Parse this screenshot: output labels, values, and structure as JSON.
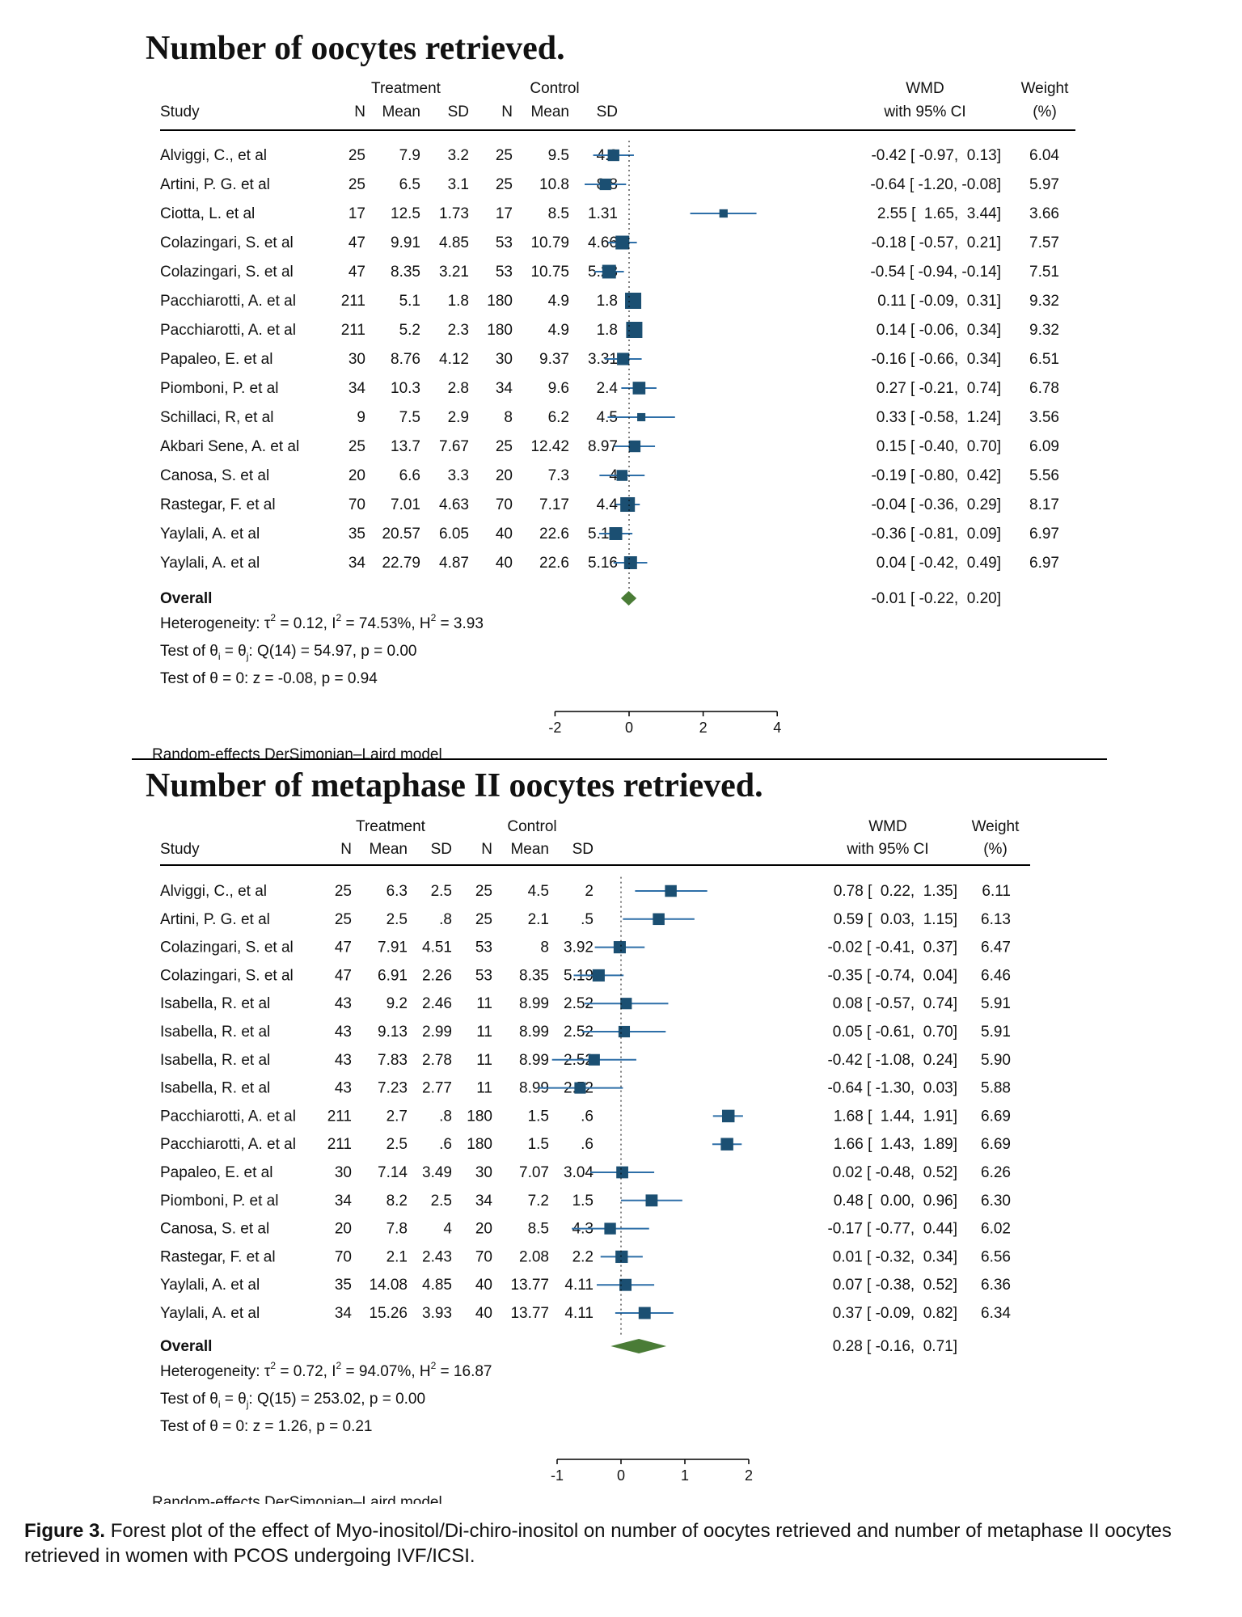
{
  "colors": {
    "marker": "#1b4f72",
    "ci_line": "#2e6fa8",
    "diamond": "#4a7c36",
    "text": "#111111",
    "rule": "#000000"
  },
  "headers": {
    "study": "Study",
    "treatment": "Treatment",
    "control": "Control",
    "n": "N",
    "mean": "Mean",
    "sd": "SD",
    "wmd": "WMD",
    "ci": "with 95% CI",
    "weight": "Weight",
    "weight_unit": "(%)"
  },
  "figure_caption": {
    "label": "Figure 3.",
    "text": " Forest plot of the effect of Myo-inositol/Di-chiro-inositol on number of oocytes retrieved and number of metaphase II oocytes retrieved in women with PCOS undergoing IVF/ICSI."
  },
  "chart_data": [
    {
      "type": "forest",
      "title": "Number of oocytes retrieved.",
      "xlim": [
        -2,
        4
      ],
      "ticks": [
        "-2",
        "0",
        "2",
        "4"
      ],
      "reference_line": 0,
      "model_note": "Random-effects DerSimonian–Laird model",
      "studies": [
        {
          "study": "Alviggi, C., et al",
          "tn": "25",
          "tmean": "7.9",
          "tsd": "3.2",
          "cn": "25",
          "cmean": "9.5",
          "csd": "4.2",
          "wmd": -0.42,
          "lo": -0.97,
          "hi": 0.13,
          "ci_text": "-0.42 [ -0.97,  0.13]",
          "weight": "6.04"
        },
        {
          "study": "Artini, P. G. et al",
          "tn": "25",
          "tmean": "6.5",
          "tsd": "3.1",
          "cn": "25",
          "cmean": "10.8",
          "csd": "8.8",
          "wmd": -0.64,
          "lo": -1.2,
          "hi": -0.08,
          "ci_text": "-0.64 [ -1.20, -0.08]",
          "weight": "5.97"
        },
        {
          "study": "Ciotta, L. et al",
          "tn": "17",
          "tmean": "12.5",
          "tsd": "1.73",
          "cn": "17",
          "cmean": "8.5",
          "csd": "1.31",
          "wmd": 2.55,
          "lo": 1.65,
          "hi": 3.44,
          "ci_text": "2.55 [  1.65,  3.44]",
          "weight": "3.66"
        },
        {
          "study": "Colazingari, S. et al",
          "tn": "47",
          "tmean": "9.91",
          "tsd": "4.85",
          "cn": "53",
          "cmean": "10.79",
          "csd": "4.66",
          "wmd": -0.18,
          "lo": -0.57,
          "hi": 0.21,
          "ci_text": "-0.18 [ -0.57,  0.21]",
          "weight": "7.57"
        },
        {
          "study": "Colazingari, S. et al",
          "tn": "47",
          "tmean": "8.35",
          "tsd": "3.21",
          "cn": "53",
          "cmean": "10.75",
          "csd": "5.23",
          "wmd": -0.54,
          "lo": -0.94,
          "hi": -0.14,
          "ci_text": "-0.54 [ -0.94, -0.14]",
          "weight": "7.51"
        },
        {
          "study": "Pacchiarotti, A. et al",
          "tn": "211",
          "tmean": "5.1",
          "tsd": "1.8",
          "cn": "180",
          "cmean": "4.9",
          "csd": "1.8",
          "wmd": 0.11,
          "lo": -0.09,
          "hi": 0.31,
          "ci_text": "0.11 [ -0.09,  0.31]",
          "weight": "9.32"
        },
        {
          "study": "Pacchiarotti, A. et al",
          "tn": "211",
          "tmean": "5.2",
          "tsd": "2.3",
          "cn": "180",
          "cmean": "4.9",
          "csd": "1.8",
          "wmd": 0.14,
          "lo": -0.06,
          "hi": 0.34,
          "ci_text": "0.14 [ -0.06,  0.34]",
          "weight": "9.32"
        },
        {
          "study": "Papaleo, E. et al",
          "tn": "30",
          "tmean": "8.76",
          "tsd": "4.12",
          "cn": "30",
          "cmean": "9.37",
          "csd": "3.31",
          "wmd": -0.16,
          "lo": -0.66,
          "hi": 0.34,
          "ci_text": "-0.16 [ -0.66,  0.34]",
          "weight": "6.51"
        },
        {
          "study": "Piomboni, P. et al",
          "tn": "34",
          "tmean": "10.3",
          "tsd": "2.8",
          "cn": "34",
          "cmean": "9.6",
          "csd": "2.4",
          "wmd": 0.27,
          "lo": -0.21,
          "hi": 0.74,
          "ci_text": "0.27 [ -0.21,  0.74]",
          "weight": "6.78"
        },
        {
          "study": "Schillaci, R, et al",
          "tn": "9",
          "tmean": "7.5",
          "tsd": "2.9",
          "cn": "8",
          "cmean": "6.2",
          "csd": "4.5",
          "wmd": 0.33,
          "lo": -0.58,
          "hi": 1.24,
          "ci_text": "0.33 [ -0.58,  1.24]",
          "weight": "3.56"
        },
        {
          "study": "Akbari Sene, A. et al",
          "tn": "25",
          "tmean": "13.7",
          "tsd": "7.67",
          "cn": "25",
          "cmean": "12.42",
          "csd": "8.97",
          "wmd": 0.15,
          "lo": -0.4,
          "hi": 0.7,
          "ci_text": "0.15 [ -0.40,  0.70]",
          "weight": "6.09"
        },
        {
          "study": "Canosa, S. et al",
          "tn": "20",
          "tmean": "6.6",
          "tsd": "3.3",
          "cn": "20",
          "cmean": "7.3",
          "csd": "4",
          "wmd": -0.19,
          "lo": -0.8,
          "hi": 0.42,
          "ci_text": "-0.19 [ -0.80,  0.42]",
          "weight": "5.56"
        },
        {
          "study": "Rastegar, F. et al",
          "tn": "70",
          "tmean": "7.01",
          "tsd": "4.63",
          "cn": "70",
          "cmean": "7.17",
          "csd": "4.4",
          "wmd": -0.04,
          "lo": -0.36,
          "hi": 0.29,
          "ci_text": "-0.04 [ -0.36,  0.29]",
          "weight": "8.17"
        },
        {
          "study": "Yaylali, A. et al",
          "tn": "35",
          "tmean": "20.57",
          "tsd": "6.05",
          "cn": "40",
          "cmean": "22.6",
          "csd": "5.16",
          "wmd": -0.36,
          "lo": -0.81,
          "hi": 0.09,
          "ci_text": "-0.36 [ -0.81,  0.09]",
          "weight": "6.97"
        },
        {
          "study": "Yaylali, A. et al",
          "tn": "34",
          "tmean": "22.79",
          "tsd": "4.87",
          "cn": "40",
          "cmean": "22.6",
          "csd": "5.16",
          "wmd": 0.04,
          "lo": -0.42,
          "hi": 0.49,
          "ci_text": "0.04 [ -0.42,  0.49]",
          "weight": "6.97"
        }
      ],
      "overall": {
        "label": "Overall",
        "wmd": -0.01,
        "lo": -0.22,
        "hi": 0.2,
        "ci_text": "-0.01 [ -0.22,  0.20]"
      },
      "stats": {
        "het_a": "Heterogeneity: τ",
        "het_b": " = 0.12, I",
        "het_c": " = 74.53%, H",
        "het_d": " = 3.93",
        "q_a": "Test of θ",
        "q_b": " = θ",
        "q_c": ": Q(14) = 54.97, p = 0.00",
        "z": "Test of θ = 0: z = -0.08, p = 0.94"
      }
    },
    {
      "type": "forest",
      "title": "Number of metaphase II oocytes retrieved.",
      "xlim": [
        -1,
        2
      ],
      "ticks": [
        "-1",
        "0",
        "1",
        "2"
      ],
      "reference_line": 0,
      "model_note": "Random-effects DerSimonian–Laird model",
      "studies": [
        {
          "study": "Alviggi, C., et al",
          "tn": "25",
          "tmean": "6.3",
          "tsd": "2.5",
          "cn": "25",
          "cmean": "4.5",
          "csd": "2",
          "wmd": 0.78,
          "lo": 0.22,
          "hi": 1.35,
          "ci_text": "0.78 [  0.22,  1.35]",
          "weight": "6.11"
        },
        {
          "study": "Artini, P. G. et al",
          "tn": "25",
          "tmean": "2.5",
          "tsd": ".8",
          "cn": "25",
          "cmean": "2.1",
          "csd": ".5",
          "wmd": 0.59,
          "lo": 0.03,
          "hi": 1.15,
          "ci_text": "0.59 [  0.03,  1.15]",
          "weight": "6.13"
        },
        {
          "study": "Colazingari, S. et al",
          "tn": "47",
          "tmean": "7.91",
          "tsd": "4.51",
          "cn": "53",
          "cmean": "8",
          "csd": "3.92",
          "wmd": -0.02,
          "lo": -0.41,
          "hi": 0.37,
          "ci_text": "-0.02 [ -0.41,  0.37]",
          "weight": "6.47"
        },
        {
          "study": "Colazingari, S. et al",
          "tn": "47",
          "tmean": "6.91",
          "tsd": "2.26",
          "cn": "53",
          "cmean": "8.35",
          "csd": "5.19",
          "wmd": -0.35,
          "lo": -0.74,
          "hi": 0.04,
          "ci_text": "-0.35 [ -0.74,  0.04]",
          "weight": "6.46"
        },
        {
          "study": "Isabella, R. et al",
          "tn": "43",
          "tmean": "9.2",
          "tsd": "2.46",
          "cn": "11",
          "cmean": "8.99",
          "csd": "2.52",
          "wmd": 0.08,
          "lo": -0.57,
          "hi": 0.74,
          "ci_text": "0.08 [ -0.57,  0.74]",
          "weight": "5.91"
        },
        {
          "study": "Isabella, R. et al",
          "tn": "43",
          "tmean": "9.13",
          "tsd": "2.99",
          "cn": "11",
          "cmean": "8.99",
          "csd": "2.52",
          "wmd": 0.05,
          "lo": -0.61,
          "hi": 0.7,
          "ci_text": "0.05 [ -0.61,  0.70]",
          "weight": "5.91"
        },
        {
          "study": "Isabella, R. et al",
          "tn": "43",
          "tmean": "7.83",
          "tsd": "2.78",
          "cn": "11",
          "cmean": "8.99",
          "csd": "2.52",
          "wmd": -0.42,
          "lo": -1.08,
          "hi": 0.24,
          "ci_text": "-0.42 [ -1.08,  0.24]",
          "weight": "5.90"
        },
        {
          "study": "Isabella, R. et al",
          "tn": "43",
          "tmean": "7.23",
          "tsd": "2.77",
          "cn": "11",
          "cmean": "8.99",
          "csd": "2.52",
          "wmd": -0.64,
          "lo": -1.3,
          "hi": 0.03,
          "ci_text": "-0.64 [ -1.30,  0.03]",
          "weight": "5.88"
        },
        {
          "study": "Pacchiarotti, A. et al",
          "tn": "211",
          "tmean": "2.7",
          "tsd": ".8",
          "cn": "180",
          "cmean": "1.5",
          "csd": ".6",
          "wmd": 1.68,
          "lo": 1.44,
          "hi": 1.91,
          "ci_text": "1.68 [  1.44,  1.91]",
          "weight": "6.69"
        },
        {
          "study": "Pacchiarotti, A. et al",
          "tn": "211",
          "tmean": "2.5",
          "tsd": ".6",
          "cn": "180",
          "cmean": "1.5",
          "csd": ".6",
          "wmd": 1.66,
          "lo": 1.43,
          "hi": 1.89,
          "ci_text": "1.66 [  1.43,  1.89]",
          "weight": "6.69"
        },
        {
          "study": "Papaleo, E. et al",
          "tn": "30",
          "tmean": "7.14",
          "tsd": "3.49",
          "cn": "30",
          "cmean": "7.07",
          "csd": "3.04",
          "wmd": 0.02,
          "lo": -0.48,
          "hi": 0.52,
          "ci_text": "0.02 [ -0.48,  0.52]",
          "weight": "6.26"
        },
        {
          "study": "Piomboni, P. et al",
          "tn": "34",
          "tmean": "8.2",
          "tsd": "2.5",
          "cn": "34",
          "cmean": "7.2",
          "csd": "1.5",
          "wmd": 0.48,
          "lo": 0.0,
          "hi": 0.96,
          "ci_text": "0.48 [  0.00,  0.96]",
          "weight": "6.30"
        },
        {
          "study": "Canosa, S. et al",
          "tn": "20",
          "tmean": "7.8",
          "tsd": "4",
          "cn": "20",
          "cmean": "8.5",
          "csd": "4.3",
          "wmd": -0.17,
          "lo": -0.77,
          "hi": 0.44,
          "ci_text": "-0.17 [ -0.77,  0.44]",
          "weight": "6.02"
        },
        {
          "study": "Rastegar, F. et al",
          "tn": "70",
          "tmean": "2.1",
          "tsd": "2.43",
          "cn": "70",
          "cmean": "2.08",
          "csd": "2.2",
          "wmd": 0.01,
          "lo": -0.32,
          "hi": 0.34,
          "ci_text": "0.01 [ -0.32,  0.34]",
          "weight": "6.56"
        },
        {
          "study": "Yaylali, A. et al",
          "tn": "35",
          "tmean": "14.08",
          "tsd": "4.85",
          "cn": "40",
          "cmean": "13.77",
          "csd": "4.11",
          "wmd": 0.07,
          "lo": -0.38,
          "hi": 0.52,
          "ci_text": "0.07 [ -0.38,  0.52]",
          "weight": "6.36"
        },
        {
          "study": "Yaylali, A. et al",
          "tn": "34",
          "tmean": "15.26",
          "tsd": "3.93",
          "cn": "40",
          "cmean": "13.77",
          "csd": "4.11",
          "wmd": 0.37,
          "lo": -0.09,
          "hi": 0.82,
          "ci_text": "0.37 [ -0.09,  0.82]",
          "weight": "6.34"
        }
      ],
      "overall": {
        "label": "Overall",
        "wmd": 0.28,
        "lo": -0.16,
        "hi": 0.71,
        "ci_text": "0.28 [ -0.16,  0.71]"
      },
      "stats": {
        "het_a": "Heterogeneity: τ",
        "het_b": " = 0.72, I",
        "het_c": " = 94.07%, H",
        "het_d": " = 16.87",
        "q_a": "Test of θ",
        "q_b": " = θ",
        "q_c": ": Q(15) = 253.02, p = 0.00",
        "z": "Test of θ = 0: z = 1.26, p = 0.21"
      }
    }
  ]
}
